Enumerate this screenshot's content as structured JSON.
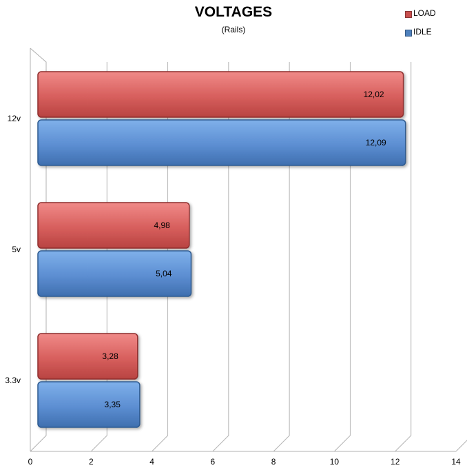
{
  "chart_data": {
    "type": "bar",
    "orientation": "horizontal",
    "title": "VOLTAGES",
    "subtitle": "(Rails)",
    "categories": [
      "12v",
      "5v",
      "3.3v"
    ],
    "series": [
      {
        "name": "LOAD",
        "values": [
          12.02,
          4.98,
          3.28
        ],
        "labels": [
          "12,02",
          "4,98",
          "3,28"
        ],
        "color": "#c9504f"
      },
      {
        "name": "IDLE",
        "values": [
          12.09,
          5.04,
          3.35
        ],
        "labels": [
          "12,09",
          "5,04",
          "3,35"
        ],
        "color": "#4f81bd"
      }
    ],
    "xlim": [
      0,
      14
    ],
    "xticks": [
      "0",
      "2",
      "4",
      "6",
      "8",
      "10",
      "12",
      "14"
    ],
    "grid": true,
    "legend": "top-right"
  }
}
